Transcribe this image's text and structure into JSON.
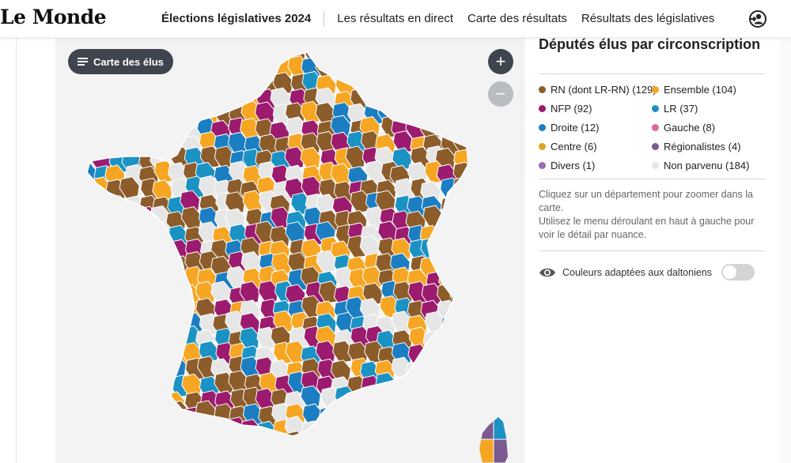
{
  "header": {
    "logo": "Le Monde",
    "nav": [
      {
        "label": "Élections législatives 2024",
        "active": true
      },
      {
        "label": "Les résultats en direct"
      },
      {
        "label": "Carte des résultats"
      },
      {
        "label": "Résultats des législatives"
      }
    ],
    "user_icon": "login-user-icon"
  },
  "map": {
    "menu_button": "Carte des élus",
    "menu_icon": "hamburger-icon",
    "zoom_in": "+",
    "zoom_out": "−",
    "colors": {
      "RN": "#8c5c2a",
      "Ensemble": "#f6a623",
      "NFP": "#9c1b6e",
      "LR": "#1b92c4",
      "Droite": "#1b7ec2",
      "Gauche": "#d96aa0",
      "Centre": "#d8a71c",
      "Regionalistes": "#7a5a8f",
      "Divers": "#9a6ab3",
      "NonParvenu": "#e6e6e6"
    }
  },
  "panel": {
    "title": "Députés élus par circonscription",
    "legend": [
      {
        "label": "RN (dont LR-RN) (129)",
        "color": "#8c5c2a"
      },
      {
        "label": "Ensemble (104)",
        "color": "#f6a623"
      },
      {
        "label": "NFP (92)",
        "color": "#9c1b6e"
      },
      {
        "label": "LR (37)",
        "color": "#1b92c4"
      },
      {
        "label": "Droite (12)",
        "color": "#1b7ec2"
      },
      {
        "label": "Gauche (8)",
        "color": "#d96aa0"
      },
      {
        "label": "Centre (6)",
        "color": "#d8a71c"
      },
      {
        "label": "Régionalistes (4)",
        "color": "#7a5a8f"
      },
      {
        "label": "Divers (1)",
        "color": "#9a6ab3"
      },
      {
        "label": "Non parvenu (184)",
        "color": "#e6e6e6"
      }
    ],
    "help_line1": "Cliquez sur un département pour zoomer dans la carte.",
    "help_line2": "Utilisez le menu déroulant en haut à gauche pour voir le détail par nuance.",
    "toggle_label": "Couleurs adaptées aux daltoniens",
    "toggle_icon": "eye-icon",
    "toggle_on": false
  }
}
